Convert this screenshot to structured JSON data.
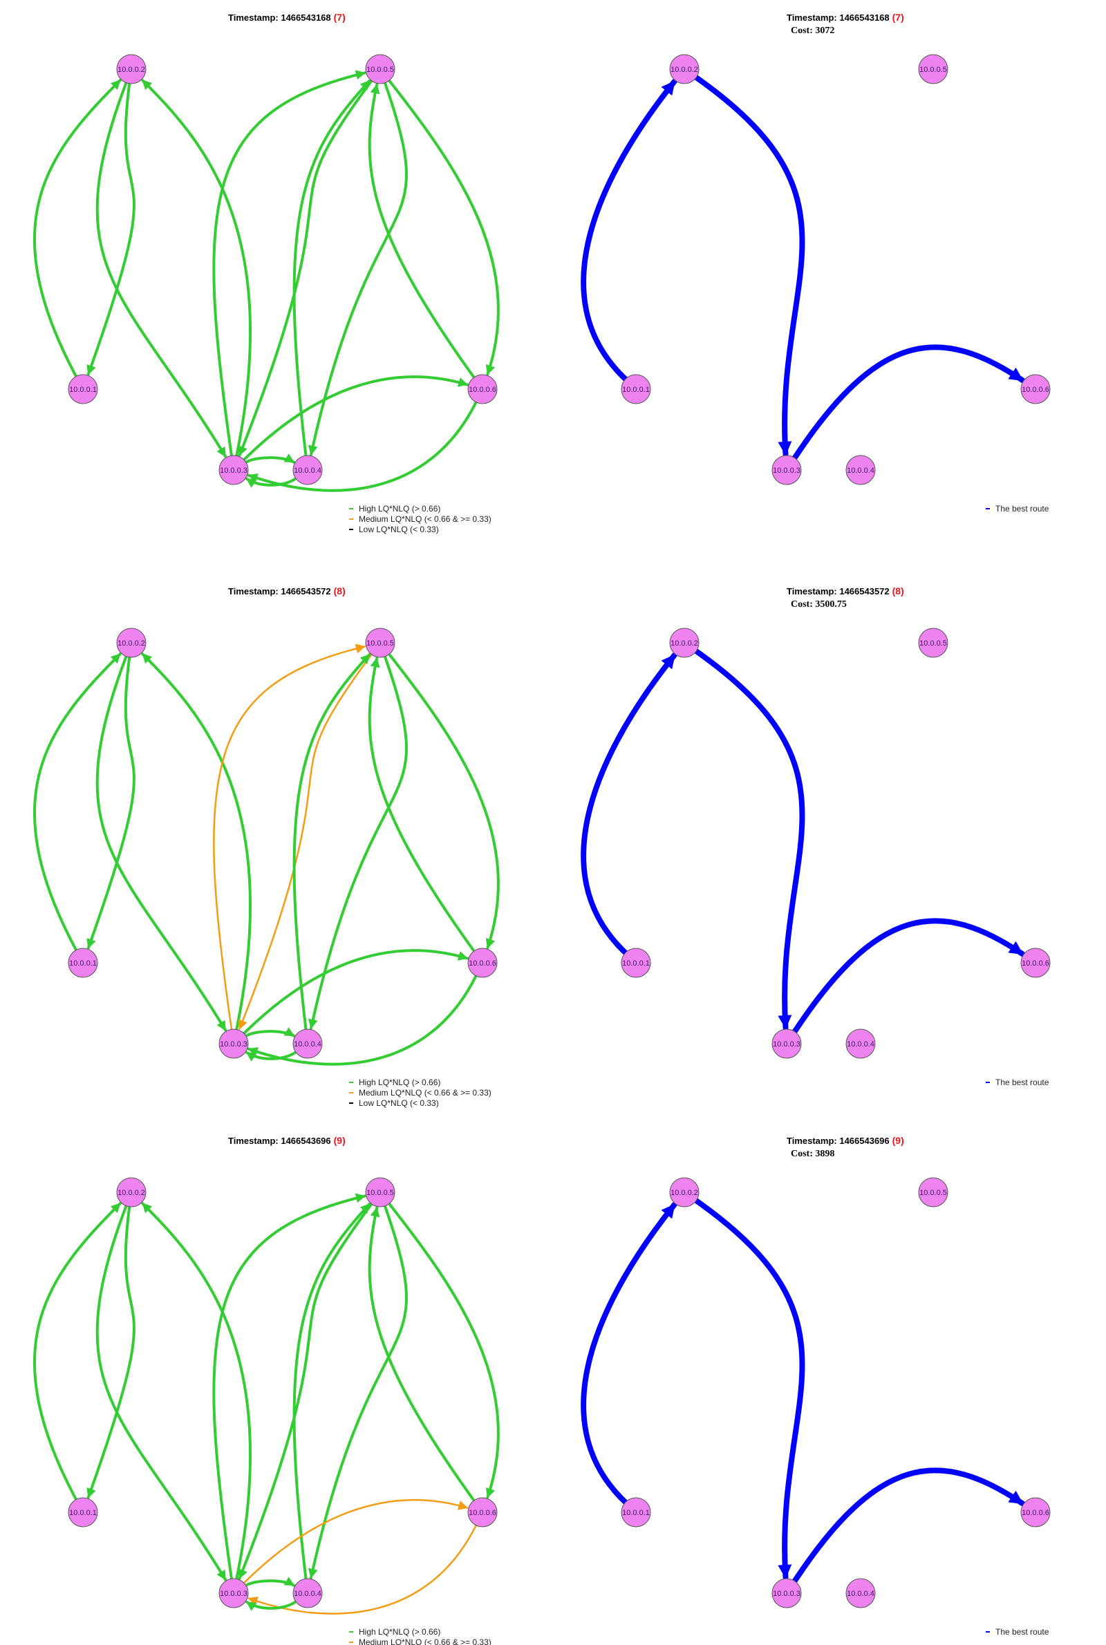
{
  "colors": {
    "high": "#33cc33",
    "medium": "#f39c12",
    "low": "#000000",
    "best_route": "#0000ff",
    "node_fill": "#ee82ee",
    "node_stroke": "#555555",
    "title_number": "#e8161b"
  },
  "nodes": [
    "10.0.0.2",
    "10.0.0.5",
    "10.0.0.1",
    "10.0.0.6",
    "10.0.0.3",
    "10.0.0.4"
  ],
  "legends": {
    "links": {
      "high": "High LQ*NLQ (> 0.66)",
      "medium": "Medium LQ*NLQ (< 0.66 & >= 0.33)",
      "low": "Low LQ*NLQ (< 0.33)"
    },
    "route": "The best route"
  },
  "snapshots": [
    {
      "timestamp_label": "Timestamp: 1466543168",
      "number": "(7)",
      "cost_label": "Cost: 3072",
      "links": [
        {
          "from": "10.0.0.1",
          "to": "10.0.0.2",
          "quality": "high"
        },
        {
          "from": "10.0.0.2",
          "to": "10.0.0.1",
          "quality": "high"
        },
        {
          "from": "10.0.0.2",
          "to": "10.0.0.3",
          "quality": "high"
        },
        {
          "from": "10.0.0.3",
          "to": "10.0.0.2",
          "quality": "high"
        },
        {
          "from": "10.0.0.3",
          "to": "10.0.0.5",
          "quality": "high"
        },
        {
          "from": "10.0.0.5",
          "to": "10.0.0.3",
          "quality": "high"
        },
        {
          "from": "10.0.0.4",
          "to": "10.0.0.5",
          "quality": "high"
        },
        {
          "from": "10.0.0.5",
          "to": "10.0.0.4",
          "quality": "high"
        },
        {
          "from": "10.0.0.5",
          "to": "10.0.0.6",
          "quality": "high"
        },
        {
          "from": "10.0.0.6",
          "to": "10.0.0.5",
          "quality": "high"
        },
        {
          "from": "10.0.0.3",
          "to": "10.0.0.6",
          "quality": "high"
        },
        {
          "from": "10.0.0.6",
          "to": "10.0.0.3",
          "quality": "high"
        },
        {
          "from": "10.0.0.3",
          "to": "10.0.0.4",
          "quality": "high"
        },
        {
          "from": "10.0.0.4",
          "to": "10.0.0.3",
          "quality": "high"
        }
      ],
      "route": [
        "10.0.0.1",
        "10.0.0.2",
        "10.0.0.3",
        "10.0.0.6"
      ]
    },
    {
      "timestamp_label": "Timestamp: 1466543572",
      "number": "(8)",
      "cost_label": "Cost: 3500.75",
      "links": [
        {
          "from": "10.0.0.1",
          "to": "10.0.0.2",
          "quality": "high"
        },
        {
          "from": "10.0.0.2",
          "to": "10.0.0.1",
          "quality": "high"
        },
        {
          "from": "10.0.0.2",
          "to": "10.0.0.3",
          "quality": "high"
        },
        {
          "from": "10.0.0.3",
          "to": "10.0.0.2",
          "quality": "high"
        },
        {
          "from": "10.0.0.3",
          "to": "10.0.0.5",
          "quality": "medium"
        },
        {
          "from": "10.0.0.5",
          "to": "10.0.0.3",
          "quality": "medium"
        },
        {
          "from": "10.0.0.4",
          "to": "10.0.0.5",
          "quality": "high"
        },
        {
          "from": "10.0.0.5",
          "to": "10.0.0.4",
          "quality": "high"
        },
        {
          "from": "10.0.0.5",
          "to": "10.0.0.6",
          "quality": "high"
        },
        {
          "from": "10.0.0.6",
          "to": "10.0.0.5",
          "quality": "high"
        },
        {
          "from": "10.0.0.3",
          "to": "10.0.0.6",
          "quality": "high"
        },
        {
          "from": "10.0.0.6",
          "to": "10.0.0.3",
          "quality": "high"
        },
        {
          "from": "10.0.0.3",
          "to": "10.0.0.4",
          "quality": "high"
        },
        {
          "from": "10.0.0.4",
          "to": "10.0.0.3",
          "quality": "high"
        }
      ],
      "route": [
        "10.0.0.1",
        "10.0.0.2",
        "10.0.0.3",
        "10.0.0.6"
      ]
    },
    {
      "timestamp_label": "Timestamp: 1466543696",
      "number": "(9)",
      "cost_label": "Cost: 3898",
      "links": [
        {
          "from": "10.0.0.1",
          "to": "10.0.0.2",
          "quality": "high"
        },
        {
          "from": "10.0.0.2",
          "to": "10.0.0.1",
          "quality": "high"
        },
        {
          "from": "10.0.0.2",
          "to": "10.0.0.3",
          "quality": "high"
        },
        {
          "from": "10.0.0.3",
          "to": "10.0.0.2",
          "quality": "high"
        },
        {
          "from": "10.0.0.3",
          "to": "10.0.0.5",
          "quality": "high"
        },
        {
          "from": "10.0.0.5",
          "to": "10.0.0.3",
          "quality": "high"
        },
        {
          "from": "10.0.0.4",
          "to": "10.0.0.5",
          "quality": "high"
        },
        {
          "from": "10.0.0.5",
          "to": "10.0.0.4",
          "quality": "high"
        },
        {
          "from": "10.0.0.5",
          "to": "10.0.0.6",
          "quality": "high"
        },
        {
          "from": "10.0.0.6",
          "to": "10.0.0.5",
          "quality": "high"
        },
        {
          "from": "10.0.0.3",
          "to": "10.0.0.6",
          "quality": "medium"
        },
        {
          "from": "10.0.0.6",
          "to": "10.0.0.3",
          "quality": "medium"
        },
        {
          "from": "10.0.0.3",
          "to": "10.0.0.4",
          "quality": "high"
        },
        {
          "from": "10.0.0.4",
          "to": "10.0.0.3",
          "quality": "high"
        }
      ],
      "route": [
        "10.0.0.1",
        "10.0.0.2",
        "10.0.0.3",
        "10.0.0.6"
      ]
    }
  ]
}
